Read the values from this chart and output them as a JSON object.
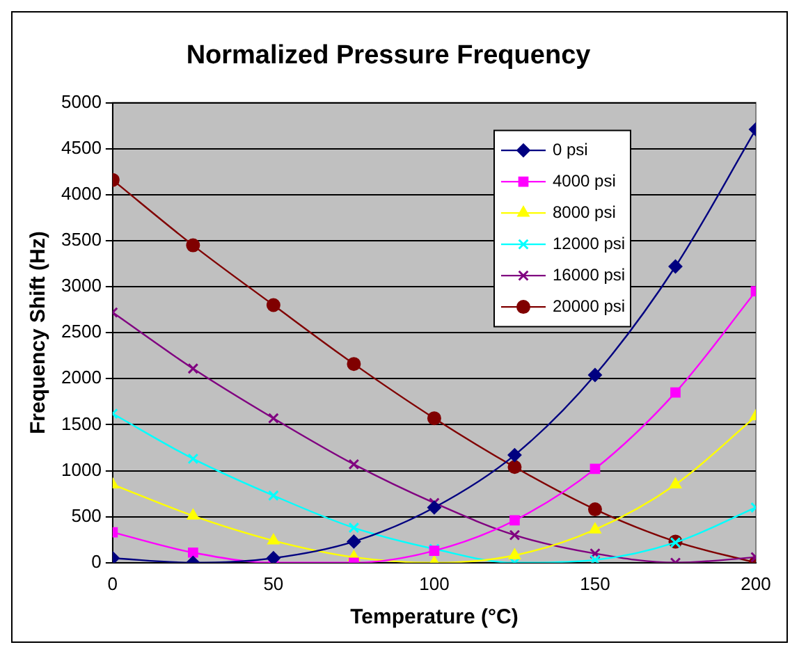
{
  "chart_data": {
    "type": "line",
    "title": "Normalized Pressure Frequency",
    "xlabel": "Temperature (°C)",
    "ylabel": "Frequency Shift (Hz)",
    "x": [
      0,
      25,
      50,
      75,
      100,
      125,
      150,
      175,
      200
    ],
    "xlim": [
      0,
      200
    ],
    "xticks": [
      0,
      50,
      100,
      150,
      200
    ],
    "ylim": [
      0,
      5000
    ],
    "yticks": [
      0,
      500,
      1000,
      1500,
      2000,
      2500,
      3000,
      3500,
      4000,
      4500,
      5000
    ],
    "grid": "y",
    "legend": "top right",
    "series": [
      {
        "name": "0 psi",
        "color": "#000080",
        "marker": "diamond",
        "values": [
          50,
          0,
          50,
          230,
          600,
          1170,
          2040,
          3220,
          4710
        ]
      },
      {
        "name": "4000 psi",
        "color": "#ff00ff",
        "marker": "square",
        "values": [
          330,
          110,
          0,
          0,
          130,
          460,
          1020,
          1850,
          2950
        ]
      },
      {
        "name": "8000 psi",
        "color": "#ffff00",
        "marker": "triangle",
        "values": [
          850,
          510,
          240,
          60,
          0,
          80,
          360,
          850,
          1590
        ]
      },
      {
        "name": "12000 psi",
        "color": "#00ffff",
        "marker": "cross",
        "values": [
          1620,
          1130,
          730,
          380,
          150,
          0,
          30,
          220,
          600
        ]
      },
      {
        "name": "16000 psi",
        "color": "#800080",
        "marker": "cross",
        "values": [
          2720,
          2110,
          1570,
          1070,
          650,
          300,
          100,
          0,
          60
        ]
      },
      {
        "name": "20000 psi",
        "color": "#800000",
        "marker": "circle",
        "values": [
          4160,
          3450,
          2800,
          2160,
          1570,
          1040,
          580,
          230,
          0
        ]
      }
    ]
  }
}
